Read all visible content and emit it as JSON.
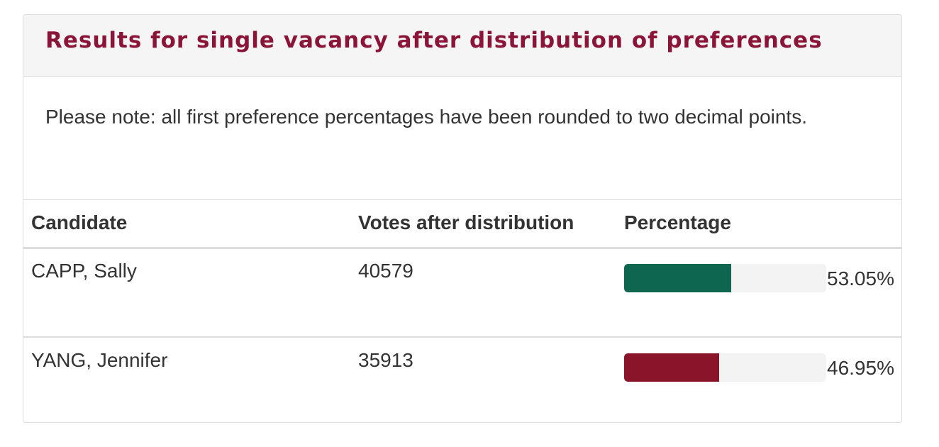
{
  "header": {
    "title": "Results for single vacancy after distribution of preferences"
  },
  "note": "Please note: all first preference percentages have been rounded to two decimal points.",
  "table": {
    "headers": [
      "Candidate",
      "Votes after distribution",
      "Percentage"
    ],
    "xlim": [
      0,
      100
    ],
    "rows": [
      {
        "candidate": "CAPP, Sally",
        "votes": 40579,
        "percentage": {
          "value": 53.05,
          "label": "53.05%"
        },
        "color": "#0e6650"
      },
      {
        "candidate": "YANG, Jennifer",
        "votes": 35913,
        "percentage": {
          "value": 46.95,
          "label": "46.95%"
        },
        "color": "#8a1429"
      }
    ]
  }
}
